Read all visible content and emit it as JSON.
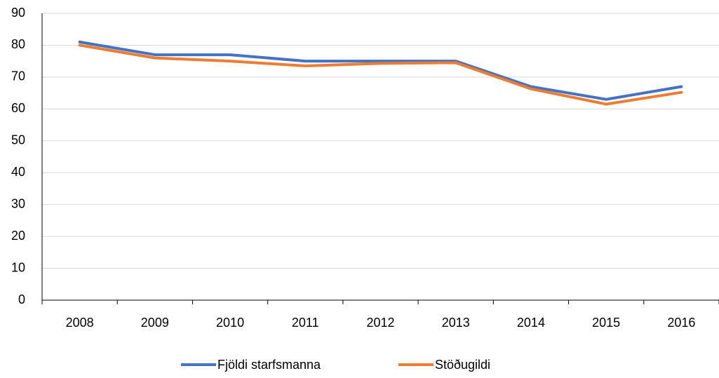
{
  "chart_data": {
    "type": "line",
    "categories": [
      "2008",
      "2009",
      "2010",
      "2011",
      "2012",
      "2013",
      "2014",
      "2015",
      "2016"
    ],
    "series": [
      {
        "name": "Fjöldi starfsmanna",
        "color": "#4472c4",
        "values": [
          81,
          77,
          77,
          75,
          75,
          75,
          67,
          63,
          67
        ]
      },
      {
        "name": "Stöðugildi",
        "color": "#ed7d31",
        "values": [
          80,
          76,
          75,
          73.5,
          74.3,
          74.5,
          66.3,
          61.5,
          65.2
        ]
      }
    ],
    "ylim": [
      0,
      90
    ],
    "yticks": [
      0,
      10,
      20,
      30,
      40,
      50,
      60,
      70,
      80,
      90
    ],
    "grid": true,
    "legend": "bottom"
  }
}
